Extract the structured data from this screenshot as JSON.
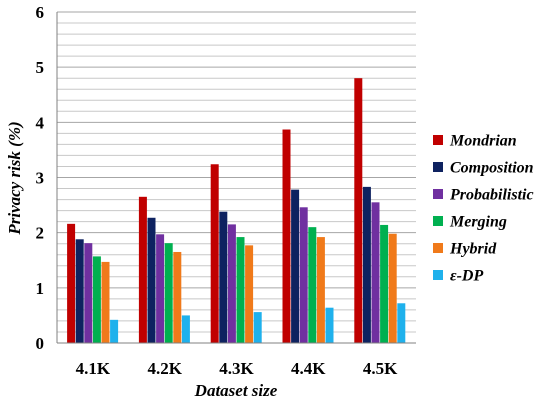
{
  "chart_data": {
    "type": "bar",
    "title": "",
    "xlabel": "Dataset size",
    "ylabel": "Privacy risk (%)",
    "ylim": [
      0,
      6
    ],
    "y_ticks": [
      "0",
      "1",
      "2",
      "3",
      "4",
      "5",
      "6"
    ],
    "minor_grid_step": 0.2,
    "grid": true,
    "legend_position": "right",
    "categories": [
      "4.1K",
      "4.2K",
      "4.3K",
      "4.4K",
      "4.5K"
    ],
    "series": [
      {
        "name": "Mondrian",
        "color": "#c00000",
        "values": [
          2.16,
          2.65,
          3.24,
          3.87,
          4.8
        ]
      },
      {
        "name": "Composition",
        "color": "#0e2260",
        "values": [
          1.88,
          2.27,
          2.38,
          2.78,
          2.83
        ]
      },
      {
        "name": "Probabilistic",
        "color": "#7030a0",
        "values": [
          1.81,
          1.97,
          2.15,
          2.46,
          2.55
        ]
      },
      {
        "name": "Merging",
        "color": "#00b050",
        "values": [
          1.57,
          1.81,
          1.92,
          2.1,
          2.14
        ]
      },
      {
        "name": "Hybrid",
        "color": "#f07a1a",
        "values": [
          1.47,
          1.65,
          1.77,
          1.92,
          1.98
        ]
      },
      {
        "name": "ε-DP",
        "color": "#1fb1ec",
        "values": [
          0.42,
          0.5,
          0.56,
          0.64,
          0.72
        ]
      }
    ]
  }
}
